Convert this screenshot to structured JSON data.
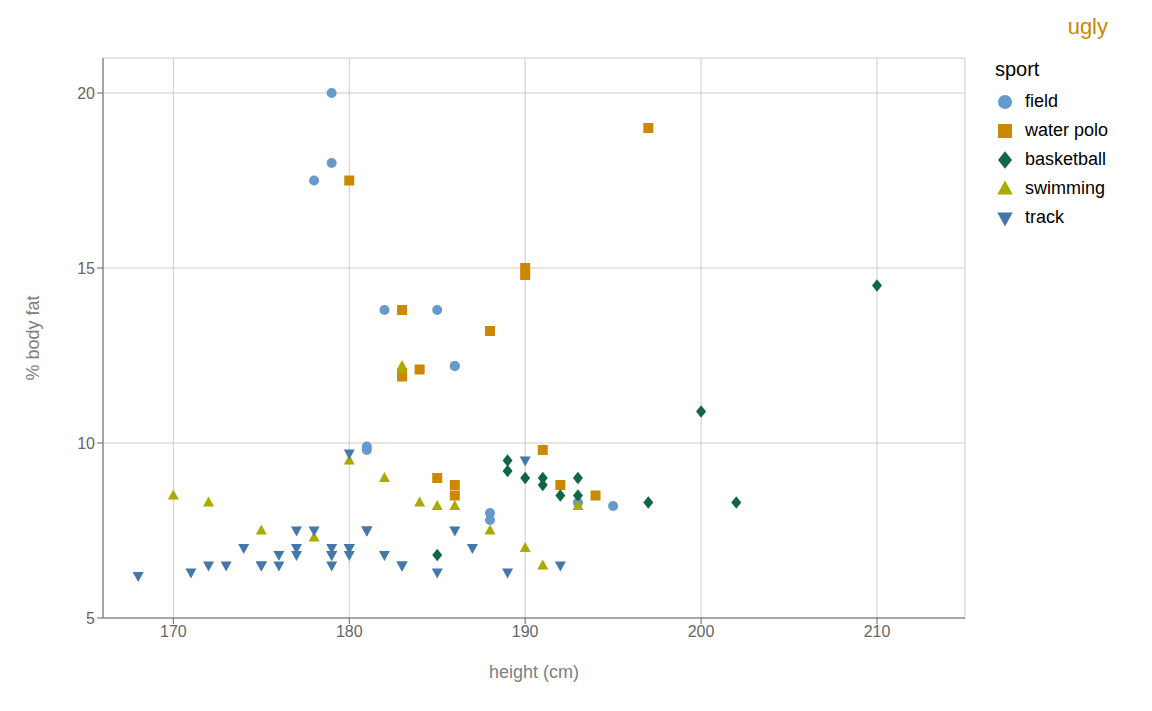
{
  "chart_data": {
    "type": "scatter",
    "xlabel": "height (cm)",
    "ylabel": "% body fat",
    "legend_title": "sport",
    "legend": "right",
    "grid": true,
    "xlim": [
      166,
      215
    ],
    "ylim": [
      5,
      21
    ],
    "xticks": [
      170,
      180,
      190,
      200,
      210
    ],
    "yticks": [
      5,
      10,
      15,
      20
    ],
    "annotations": [
      {
        "text": "ugly",
        "color": "#CC8800"
      }
    ],
    "series": [
      {
        "name": "field",
        "color": "#6699CC",
        "marker": "circle",
        "x": [
          179,
          179,
          178,
          182,
          185,
          186,
          186,
          181,
          181,
          188,
          188,
          193,
          195
        ],
        "values": [
          20.0,
          18.0,
          17.5,
          13.8,
          13.8,
          12.2,
          12.2,
          9.9,
          9.8,
          8.0,
          7.8,
          8.3,
          8.2
        ]
      },
      {
        "name": "water polo",
        "color": "#CC8800",
        "marker": "square",
        "x": [
          180,
          183,
          183,
          183,
          184,
          185,
          186,
          186,
          188,
          190,
          190,
          191,
          192,
          194,
          197
        ],
        "values": [
          17.5,
          13.8,
          12.0,
          11.9,
          12.1,
          9.0,
          8.8,
          8.5,
          13.2,
          15.0,
          14.8,
          9.8,
          8.8,
          8.5,
          19.0
        ]
      },
      {
        "name": "basketball",
        "color": "#116644",
        "marker": "diamond",
        "x": [
          185,
          189,
          189,
          190,
          191,
          191,
          192,
          193,
          193,
          197,
          200,
          202,
          210
        ],
        "values": [
          6.8,
          9.5,
          9.2,
          9.0,
          9.0,
          8.8,
          8.5,
          8.5,
          9.0,
          8.3,
          10.9,
          8.3,
          14.5
        ]
      },
      {
        "name": "swimming",
        "color": "#AAAA00",
        "marker": "triangle-up",
        "x": [
          170,
          172,
          175,
          178,
          180,
          182,
          183,
          183,
          184,
          185,
          186,
          188,
          190,
          191,
          193
        ],
        "values": [
          8.5,
          8.3,
          7.5,
          7.3,
          9.5,
          9.0,
          12.2,
          12.1,
          8.3,
          8.2,
          8.2,
          7.5,
          7.0,
          6.5,
          8.2
        ]
      },
      {
        "name": "track",
        "color": "#4477AA",
        "marker": "triangle-down",
        "x": [
          168,
          171,
          172,
          173,
          174,
          175,
          175,
          176,
          176,
          177,
          177,
          177,
          178,
          179,
          179,
          179,
          179,
          180,
          180,
          180,
          180,
          181,
          181,
          182,
          183,
          183,
          185,
          186,
          187,
          189,
          190,
          192
        ],
        "values": [
          6.2,
          6.3,
          6.5,
          6.5,
          7.0,
          6.5,
          6.5,
          6.5,
          6.8,
          6.8,
          7.0,
          7.5,
          7.5,
          7.0,
          6.8,
          6.8,
          6.5,
          7.0,
          7.0,
          6.8,
          9.7,
          7.5,
          7.5,
          6.8,
          6.5,
          6.5,
          6.3,
          7.5,
          7.0,
          6.3,
          9.5,
          6.5
        ]
      }
    ]
  }
}
